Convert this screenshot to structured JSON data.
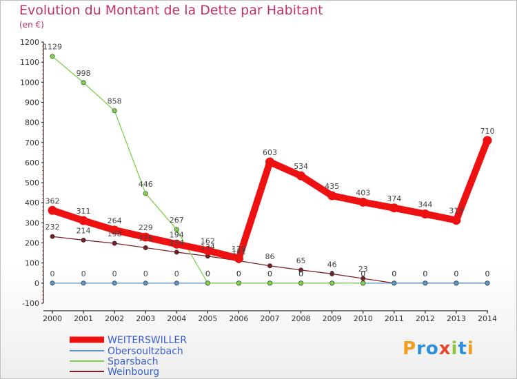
{
  "title": "Evolution du Montant de la Dette par Habitant",
  "subtitle": "(en €)",
  "logo": "Proxiti",
  "chart_data": {
    "type": "line",
    "title": "Evolution du Montant de la Dette par Habitant",
    "subtitle": "(en €)",
    "xlabel": "",
    "ylabel": "",
    "x": [
      2000,
      2001,
      2002,
      2003,
      2004,
      2005,
      2006,
      2007,
      2008,
      2009,
      2010,
      2011,
      2012,
      2013,
      2014
    ],
    "ylim": [
      -100,
      1200
    ],
    "yticks": [
      -100,
      0,
      100,
      200,
      300,
      400,
      500,
      600,
      700,
      800,
      900,
      1000,
      1100,
      1200
    ],
    "grid": false,
    "legend_position": "bottom-left",
    "series": [
      {
        "name": "WEITERSWILLER",
        "color": "#ee1111",
        "values": [
          362,
          311,
          264,
          229,
          194,
          162,
          123,
          603,
          534,
          435,
          403,
          374,
          344,
          313,
          710
        ],
        "labels": [
          "362",
          "311",
          "264",
          "229",
          "194",
          "162",
          "123",
          "603",
          "534",
          "435",
          "403",
          "374",
          "344",
          "313",
          "710"
        ]
      },
      {
        "name": "Obersoultzbach",
        "color": "#5b93c8",
        "values": [
          0,
          0,
          0,
          0,
          0,
          0,
          0,
          0,
          0,
          0,
          0,
          0,
          0,
          0,
          0
        ],
        "labels": [
          "0",
          "0",
          "0",
          "0",
          "0",
          "0",
          "0",
          "0",
          "0",
          "0",
          "0",
          "0",
          "0",
          "0",
          "0"
        ]
      },
      {
        "name": "Sparsbach",
        "color": "#7ed04a",
        "values": [
          1129,
          998,
          858,
          446,
          267,
          0,
          0,
          0,
          0,
          0,
          0,
          null,
          null,
          null,
          null
        ],
        "labels": [
          "1129",
          "998",
          "858",
          "446",
          "267",
          "0",
          "0",
          "0",
          "0",
          "0",
          "0",
          null,
          null,
          null,
          null
        ]
      },
      {
        "name": "Weinbourg",
        "color": "#7a1f28",
        "values": [
          232,
          214,
          198,
          176,
          154,
          134,
          111,
          86,
          65,
          46,
          23,
          0,
          0,
          0,
          0
        ],
        "labels": [
          "232",
          "214",
          "198",
          "176",
          "154",
          "134",
          "111",
          "86",
          "65",
          "46",
          "23",
          "0",
          "0",
          "0",
          "0"
        ]
      }
    ]
  }
}
